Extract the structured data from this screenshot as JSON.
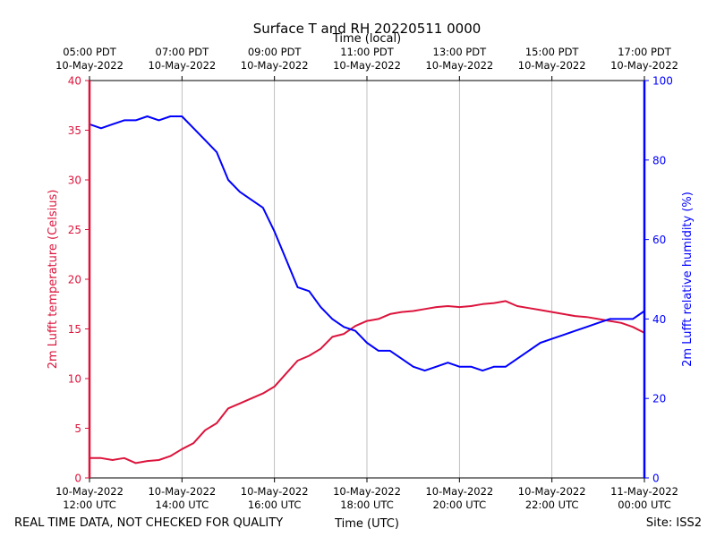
{
  "chart_data": {
    "type": "line",
    "title": "Surface T and RH 20220511 0000",
    "top_axis_title": "Time (local)",
    "xlabel": "Time (UTC)",
    "xlim_hours_utc": [
      12,
      24
    ],
    "x_ticks_utc": [
      {
        "hour": 12,
        "date": "10-May-2022",
        "time": "12:00 UTC"
      },
      {
        "hour": 14,
        "date": "10-May-2022",
        "time": "14:00 UTC"
      },
      {
        "hour": 16,
        "date": "10-May-2022",
        "time": "16:00 UTC"
      },
      {
        "hour": 18,
        "date": "10-May-2022",
        "time": "18:00 UTC"
      },
      {
        "hour": 20,
        "date": "10-May-2022",
        "time": "20:00 UTC"
      },
      {
        "hour": 22,
        "date": "10-May-2022",
        "time": "22:00 UTC"
      },
      {
        "hour": 24,
        "date": "11-May-2022",
        "time": "00:00 UTC"
      }
    ],
    "x_ticks_local": [
      {
        "hour": 12,
        "time": "05:00 PDT",
        "date": "10-May-2022"
      },
      {
        "hour": 14,
        "time": "07:00 PDT",
        "date": "10-May-2022"
      },
      {
        "hour": 16,
        "time": "09:00 PDT",
        "date": "10-May-2022"
      },
      {
        "hour": 18,
        "time": "11:00 PDT",
        "date": "10-May-2022"
      },
      {
        "hour": 20,
        "time": "13:00 PDT",
        "date": "10-May-2022"
      },
      {
        "hour": 22,
        "time": "15:00 PDT",
        "date": "10-May-2022"
      },
      {
        "hour": 24,
        "time": "17:00 PDT",
        "date": "10-May-2022"
      }
    ],
    "left_axis": {
      "label": "2m Lufft temperature (Celsius)",
      "ylim": [
        0,
        40
      ],
      "ticks": [
        0,
        5,
        10,
        15,
        20,
        25,
        30,
        35,
        40
      ],
      "color": "#dc143c"
    },
    "right_axis": {
      "label": "2m Lufft relative humidity (%)",
      "ylim": [
        0,
        100
      ],
      "ticks": [
        0,
        20,
        40,
        60,
        80,
        100
      ],
      "color": "#0000ff"
    },
    "grid": "vertical",
    "series": [
      {
        "name": "2m Lufft temperature",
        "axis": "left",
        "color": "#dc143c",
        "x": [
          12.0,
          12.25,
          12.5,
          12.75,
          13.0,
          13.25,
          13.5,
          13.75,
          14.0,
          14.25,
          14.5,
          14.75,
          15.0,
          15.25,
          15.5,
          15.75,
          16.0,
          16.25,
          16.5,
          16.75,
          17.0,
          17.25,
          17.5,
          17.75,
          18.0,
          18.25,
          18.5,
          18.75,
          19.0,
          19.25,
          19.5,
          19.75,
          20.0,
          20.25,
          20.5,
          20.75,
          21.0,
          21.25,
          21.5,
          21.75,
          22.0,
          22.25,
          22.5,
          22.75,
          23.0,
          23.25,
          23.5,
          23.75,
          24.0
        ],
        "y": [
          2.0,
          2.0,
          1.8,
          2.0,
          1.5,
          1.7,
          1.8,
          2.2,
          2.9,
          3.5,
          4.8,
          5.5,
          7.0,
          7.5,
          8.0,
          8.5,
          9.2,
          10.5,
          11.8,
          12.3,
          13.0,
          14.2,
          14.5,
          15.3,
          15.8,
          16.0,
          16.5,
          16.7,
          16.8,
          17.0,
          17.2,
          17.3,
          17.2,
          17.3,
          17.5,
          17.6,
          17.8,
          17.3,
          17.1,
          16.9,
          16.7,
          16.5,
          16.3,
          16.2,
          16.0,
          15.8,
          15.6,
          15.2,
          14.6
        ]
      },
      {
        "name": "2m Lufft relative humidity",
        "axis": "right",
        "color": "#0000ff",
        "x": [
          12.0,
          12.25,
          12.5,
          12.75,
          13.0,
          13.25,
          13.5,
          13.75,
          14.0,
          14.25,
          14.5,
          14.75,
          15.0,
          15.25,
          15.5,
          15.75,
          16.0,
          16.25,
          16.5,
          16.75,
          17.0,
          17.25,
          17.5,
          17.75,
          18.0,
          18.25,
          18.5,
          18.75,
          19.0,
          19.25,
          19.5,
          19.75,
          20.0,
          20.25,
          20.5,
          20.75,
          21.0,
          21.25,
          21.5,
          21.75,
          22.0,
          22.25,
          22.5,
          22.75,
          23.0,
          23.25,
          23.5,
          23.75,
          24.0
        ],
        "y": [
          89,
          88,
          89,
          90,
          90,
          91,
          90,
          91,
          91,
          88,
          85,
          82,
          75,
          72,
          70,
          68,
          62,
          55,
          48,
          47,
          43,
          40,
          38,
          37,
          34,
          32,
          32,
          30,
          28,
          27,
          28,
          29,
          28,
          28,
          27,
          28,
          28,
          30,
          32,
          34,
          35,
          36,
          37,
          38,
          39,
          40,
          40,
          40,
          42
        ]
      }
    ]
  },
  "footer": {
    "left_note": "REAL TIME DATA, NOT CHECKED FOR QUALITY",
    "site": "Site: ISS2"
  }
}
